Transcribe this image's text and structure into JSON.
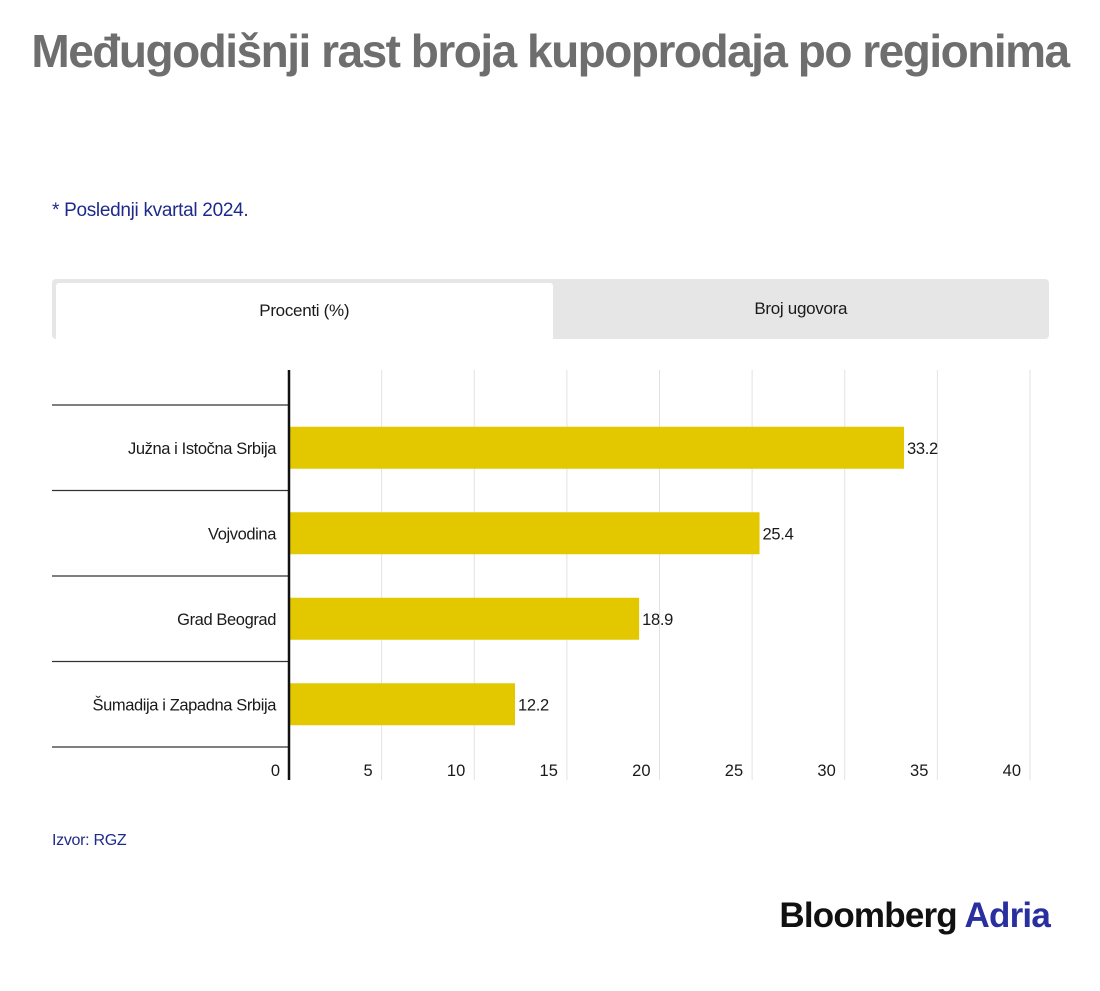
{
  "title": "Međugodišnji rast broja kupoprodaja po regionima",
  "subtitle": "* Poslednji kvartal 2024.",
  "tabs": [
    {
      "label": "Procenti (%)",
      "active": true
    },
    {
      "label": "Broj ugovora",
      "active": false
    }
  ],
  "chart_data": {
    "type": "bar",
    "orientation": "horizontal",
    "categories": [
      "Južna i Istočna Srbija",
      "Vojvodina",
      "Grad Beograd",
      "Šumadija i Zapadna Srbija"
    ],
    "values": [
      33.2,
      25.4,
      18.9,
      12.2
    ],
    "value_labels": [
      "33.2",
      "25.4",
      "18.9",
      "12.2"
    ],
    "xlim": [
      0,
      40
    ],
    "xticks": [
      "0",
      "5",
      "10",
      "15",
      "20",
      "25",
      "30",
      "35",
      "40"
    ],
    "grid": true,
    "bar_color": "#e3c800"
  },
  "source": "Izvor: RGZ",
  "logo": {
    "part1": "Bloomberg",
    "part2": "Adria",
    "accent_color": "#2a2fa0"
  }
}
